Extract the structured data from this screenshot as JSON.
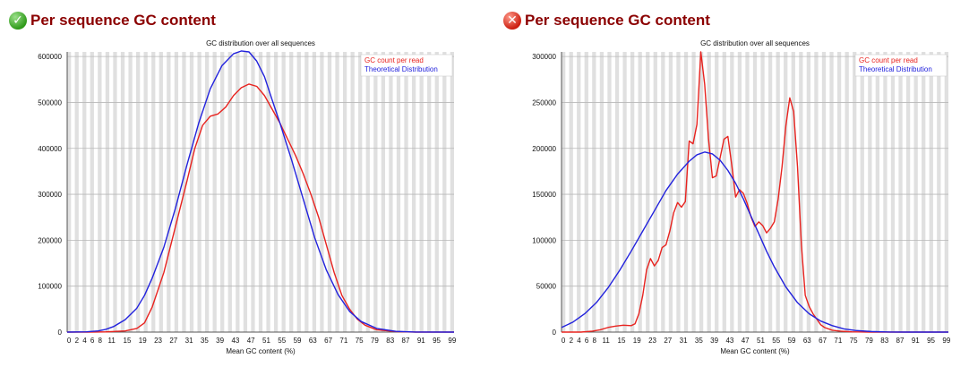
{
  "panels": [
    {
      "status": "pass",
      "status_icon": "check-circle-icon",
      "title": "Per sequence GC content"
    },
    {
      "status": "fail",
      "status_icon": "x-circle-icon",
      "title": "Per sequence GC content"
    }
  ],
  "colors": {
    "title": "#8b0000",
    "series_gc": "#e8231f",
    "series_theory": "#2222dd",
    "stripe": "#e0e0e0",
    "gridline": "#b8b8b8"
  },
  "chart_data": [
    {
      "type": "line",
      "title": "GC distribution over all sequences",
      "xlabel": "Mean GC content (%)",
      "ylabel": "",
      "xlim": [
        0,
        100
      ],
      "ylim": [
        0,
        610000
      ],
      "grid": true,
      "legend_position": "top-right",
      "y_ticks": [
        "0",
        "100000",
        "200000",
        "300000",
        "400000",
        "500000",
        "600000"
      ],
      "x_ticks": [
        "0",
        "2",
        "4",
        "6",
        "8",
        "11",
        "15",
        "19",
        "23",
        "27",
        "31",
        "35",
        "39",
        "43",
        "47",
        "51",
        "55",
        "59",
        "63",
        "67",
        "71",
        "75",
        "79",
        "83",
        "87",
        "91",
        "95",
        "99"
      ],
      "series": [
        {
          "name": "GC count per read",
          "x": [
            0,
            5,
            10,
            15,
            18,
            20,
            22,
            25,
            28,
            31,
            33,
            35,
            37,
            39,
            41,
            43,
            45,
            47,
            49,
            51,
            53,
            55,
            57,
            59,
            61,
            63,
            65,
            67,
            69,
            71,
            73,
            75,
            77,
            80,
            85,
            90,
            100
          ],
          "values": [
            0,
            0,
            500,
            2500,
            8000,
            20000,
            55000,
            130000,
            230000,
            330000,
            400000,
            450000,
            470000,
            475000,
            490000,
            515000,
            532000,
            540000,
            535000,
            515000,
            485000,
            455000,
            420000,
            385000,
            345000,
            300000,
            250000,
            190000,
            130000,
            80000,
            50000,
            28000,
            15000,
            5000,
            1000,
            0,
            0
          ]
        },
        {
          "name": "Theoretical Distribution",
          "x": [
            0,
            5,
            8,
            10,
            12,
            15,
            18,
            20,
            22,
            25,
            28,
            31,
            34,
            37,
            40,
            43,
            45,
            47,
            49,
            51,
            53,
            55,
            58,
            61,
            64,
            67,
            70,
            73,
            76,
            80,
            85,
            90,
            100
          ],
          "values": [
            0,
            600,
            2500,
            6000,
            12000,
            27000,
            52000,
            80000,
            118000,
            185000,
            270000,
            365000,
            455000,
            530000,
            580000,
            606000,
            612000,
            610000,
            590000,
            556000,
            505000,
            455000,
            375000,
            290000,
            205000,
            135000,
            82000,
            45000,
            23000,
            8000,
            1500,
            200,
            0
          ]
        }
      ]
    },
    {
      "type": "line",
      "title": "GC distribution over all sequences",
      "xlabel": "Mean GC content (%)",
      "ylabel": "",
      "xlim": [
        0,
        100
      ],
      "ylim": [
        0,
        305000
      ],
      "grid": true,
      "legend_position": "top-right",
      "y_ticks": [
        "0",
        "50000",
        "100000",
        "150000",
        "200000",
        "250000",
        "300000"
      ],
      "x_ticks": [
        "0",
        "2",
        "4",
        "6",
        "8",
        "11",
        "15",
        "19",
        "23",
        "27",
        "31",
        "35",
        "39",
        "43",
        "47",
        "51",
        "55",
        "59",
        "63",
        "67",
        "71",
        "75",
        "79",
        "83",
        "87",
        "91",
        "95",
        "99"
      ],
      "series": [
        {
          "name": "GC count per read",
          "x": [
            0,
            5,
            8,
            10,
            12,
            14,
            16,
            18,
            19,
            20,
            21,
            22,
            23,
            24,
            25,
            26,
            27,
            28,
            29,
            30,
            31,
            32,
            33,
            34,
            35,
            36,
            37,
            38,
            39,
            40,
            41,
            42,
            43,
            44,
            45,
            46,
            47,
            48,
            49,
            50,
            51,
            52,
            53,
            54,
            55,
            56,
            57,
            58,
            59,
            60,
            61,
            62,
            63,
            64,
            65,
            66,
            67,
            68,
            70,
            72,
            75,
            80,
            100
          ],
          "values": [
            0,
            0,
            1000,
            2500,
            5000,
            6500,
            7500,
            7000,
            9000,
            20000,
            40000,
            68000,
            80000,
            72000,
            78000,
            92000,
            95000,
            110000,
            130000,
            141000,
            136000,
            142000,
            208000,
            205000,
            226000,
            305000,
            270000,
            210000,
            168000,
            170000,
            190000,
            210000,
            213000,
            182000,
            147000,
            155000,
            151000,
            140000,
            125000,
            115000,
            120000,
            116000,
            108000,
            113000,
            120000,
            145000,
            180000,
            225000,
            255000,
            240000,
            180000,
            95000,
            40000,
            28000,
            20000,
            14000,
            8000,
            5000,
            2000,
            1000,
            300,
            0,
            0
          ]
        },
        {
          "name": "Theoretical Distribution",
          "x": [
            0,
            3,
            6,
            9,
            12,
            15,
            18,
            21,
            24,
            27,
            30,
            33,
            35,
            37,
            39,
            41,
            43,
            45,
            47,
            49,
            51,
            53,
            55,
            58,
            61,
            64,
            67,
            70,
            73,
            76,
            80,
            85,
            90,
            100
          ],
          "values": [
            5000,
            11000,
            20000,
            32000,
            48000,
            67000,
            88000,
            110000,
            132000,
            154000,
            172000,
            186000,
            193000,
            196000,
            194000,
            187000,
            176000,
            162000,
            145000,
            126000,
            107000,
            88000,
            71000,
            49000,
            32000,
            20000,
            12000,
            7000,
            3500,
            1800,
            600,
            100,
            0,
            0
          ]
        }
      ]
    }
  ]
}
